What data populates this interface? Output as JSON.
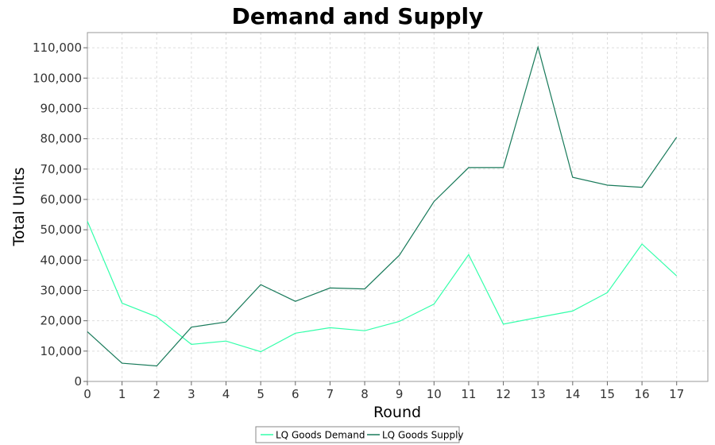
{
  "chart_data": {
    "type": "line",
    "title": "Demand and Supply",
    "xlabel": "Round",
    "ylabel": "Total Units",
    "x": [
      0,
      1,
      2,
      3,
      4,
      5,
      6,
      7,
      8,
      9,
      10,
      11,
      12,
      13,
      14,
      15,
      16,
      17
    ],
    "xlim": [
      0,
      17.9
    ],
    "ylim": [
      0,
      115000
    ],
    "y_ticks": [
      0,
      10000,
      20000,
      30000,
      40000,
      50000,
      60000,
      70000,
      80000,
      90000,
      100000,
      110000
    ],
    "y_tick_labels": [
      "0",
      "10,000",
      "20,000",
      "30,000",
      "40,000",
      "50,000",
      "60,000",
      "70,000",
      "80,000",
      "90,000",
      "100,000",
      "110,000"
    ],
    "x_tick_labels": [
      "0",
      "1",
      "2",
      "3",
      "4",
      "5",
      "6",
      "7",
      "8",
      "9",
      "10",
      "11",
      "12",
      "13",
      "14",
      "15",
      "16",
      "17"
    ],
    "grid": true,
    "legend_position": "bottom",
    "series": [
      {
        "name": "LQ Goods Demand",
        "color": "#33ffaa",
        "values": [
          52800,
          25800,
          21300,
          12200,
          13300,
          9800,
          15900,
          17700,
          16700,
          19800,
          25500,
          41800,
          18900,
          21100,
          23200,
          29300,
          45300,
          34800
        ]
      },
      {
        "name": "LQ Goods Supply",
        "color": "#187a5a",
        "values": [
          16400,
          6000,
          5100,
          17900,
          19600,
          31900,
          26400,
          30800,
          30500,
          41600,
          59300,
          70500,
          70500,
          110200,
          67300,
          64700,
          64000,
          80500
        ]
      }
    ]
  }
}
